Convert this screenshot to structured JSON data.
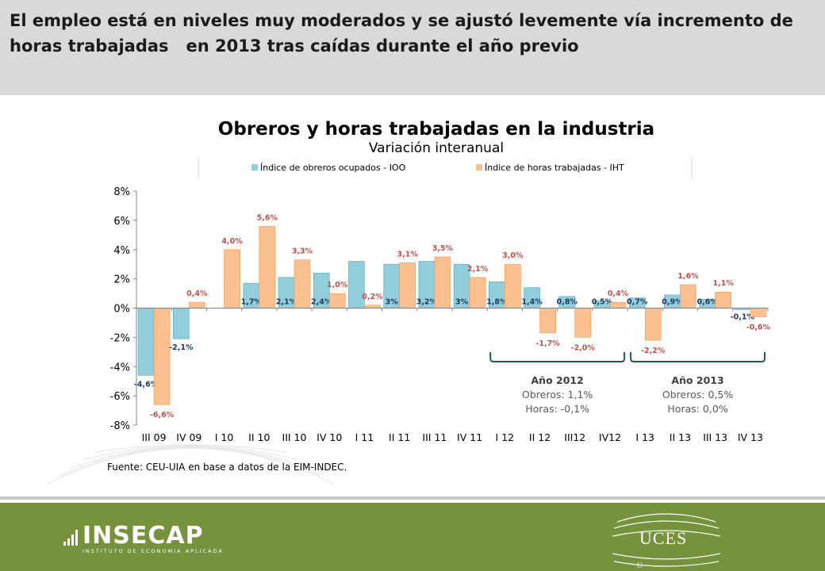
{
  "slide": {
    "headline": "El empleo está en niveles muy moderados y se ajustó levemente vía incremento de horas trabajadas   en 2013 tras caídas durante el año previo",
    "source": "Fuente: CEU-UIA en base a datos de la EIM-INDEC.",
    "logos": {
      "insecap_name": "INSECAP",
      "insecap_subtitle": "INSTITUTO DE ECONOMIA APLICADA",
      "uces_name": "UCES",
      "uces_small": "U"
    }
  },
  "chart_data": {
    "type": "bar",
    "title": "Obreros y horas trabajadas en la industria",
    "subtitle": "Variación interanual",
    "categories": [
      "III 09",
      "IV 09",
      "I 10",
      "II 10",
      "III 10",
      "IV 10",
      "I 11",
      "II 11",
      "III 11",
      "IV 11",
      "I 12",
      "II 12",
      "III12",
      "IV12",
      "I 13",
      "II 13",
      "III 13",
      "IV 13"
    ],
    "series": [
      {
        "name": "Índice de obreros ocupados - IOO",
        "color": "#92cddc",
        "edge": "#4bacc6",
        "values": [
          -4.6,
          -2.1,
          0.0,
          1.7,
          2.1,
          2.4,
          3.2,
          3.0,
          3.2,
          3.0,
          1.8,
          1.4,
          0.8,
          0.5,
          0.7,
          0.9,
          0.6,
          -0.1
        ],
        "labels": [
          "-4,6%",
          "-2,1%",
          "",
          "1,7%",
          "2,1%",
          "2,4%",
          "",
          "3%",
          "3,2%",
          "3%",
          "1,8%",
          "1,4%",
          "0,8%",
          "0,5%",
          "0,7%",
          "0,9%",
          "0,6%",
          "-0,1%"
        ]
      },
      {
        "name": "Índice de horas trabajadas - IHT",
        "color": "#fac090",
        "edge": "#f79646",
        "values": [
          -6.6,
          0.4,
          4.0,
          5.6,
          3.3,
          1.0,
          0.2,
          3.1,
          3.5,
          2.1,
          3.0,
          -1.7,
          -2.0,
          0.4,
          -2.2,
          1.6,
          1.1,
          -0.6
        ],
        "labels": [
          "-6,6%",
          "0,4%",
          "4,0%",
          "5,6%",
          "3,3%",
          "1,0%",
          "0,2%",
          "3,1%",
          "3,5%",
          "2,1%",
          "3,0%",
          "-1,7%",
          "-2,0%",
          "0,4%",
          "-2,2%",
          "1,6%",
          "1,1%",
          "-0,6%"
        ]
      }
    ],
    "ylim": [
      -8,
      8
    ],
    "yticks": [
      8,
      6,
      4,
      2,
      0,
      -2,
      -4,
      -6,
      -8
    ],
    "ytick_labels": [
      "8%",
      "6%",
      "4%",
      "2%",
      "0%",
      "-2%",
      "-4%",
      "-6%",
      "-8%"
    ],
    "grid": false,
    "legend": "top",
    "label_color": "#c0504d",
    "annotations": [
      {
        "title": "Año 2012",
        "lines": [
          "Obreros: 1,1%",
          "Horas: -0,1%"
        ],
        "from": 10,
        "to": 13,
        "color": "#215868"
      },
      {
        "title": "Año 2013",
        "lines": [
          "Obreros: 0,5%",
          "Horas: 0,0%"
        ],
        "from": 14,
        "to": 17,
        "color": "#215868"
      }
    ]
  }
}
